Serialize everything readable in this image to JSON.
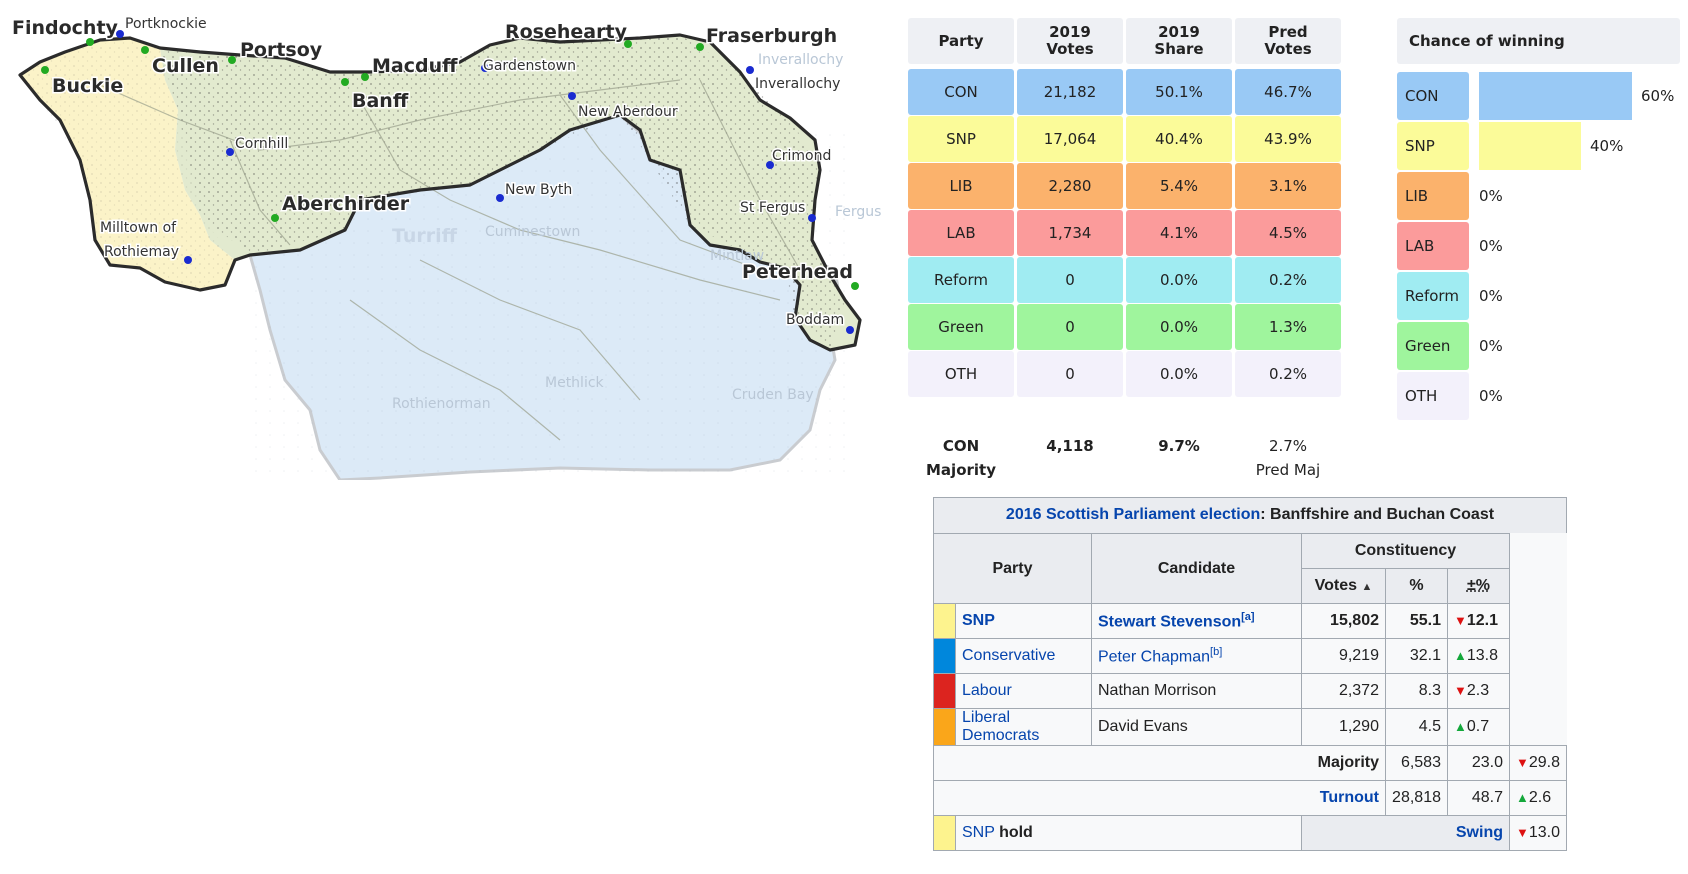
{
  "map": {
    "towns_major": [
      {
        "name": "Findochty"
      },
      {
        "name": "Buckie"
      },
      {
        "name": "Cullen"
      },
      {
        "name": "Portsoy"
      },
      {
        "name": "Macduff"
      },
      {
        "name": "Banff"
      },
      {
        "name": "Rosehearty"
      },
      {
        "name": "Fraserburgh"
      },
      {
        "name": "Aberchirder"
      },
      {
        "name": "Peterhead"
      },
      {
        "name": "Turriff"
      }
    ],
    "towns_minor": [
      {
        "name": "Portknockie"
      },
      {
        "name": "Gardenstown"
      },
      {
        "name": "Inverallochy"
      },
      {
        "name": "New Aberdour"
      },
      {
        "name": "Cornhill"
      },
      {
        "name": "New Byth"
      },
      {
        "name": "Crimond"
      },
      {
        "name": "St Fergus"
      },
      {
        "name": "Milltown of"
      },
      {
        "name": "Rothiemay"
      },
      {
        "name": "Boddam"
      },
      {
        "name": "Cuminestown"
      },
      {
        "name": "Mintlaw"
      },
      {
        "name": "Fergus"
      },
      {
        "name": "Methlick"
      },
      {
        "name": "Rothienorman"
      },
      {
        "name": "Cruden Bay"
      },
      {
        "name": "Inverallochy"
      }
    ],
    "colors": {
      "con_area": "#e2eacf",
      "lib_area": "#fbf3c8",
      "snp_area": "#dceaf7",
      "border": "#2b2b2b"
    }
  },
  "prediction": {
    "headers": {
      "party": "Party",
      "votes2019": "2019\nVotes",
      "share2019": "2019\nShare",
      "pred": "Pred\nVotes"
    },
    "rows": [
      {
        "party": "CON",
        "votes": "21,182",
        "share": "50.1%",
        "pred": "46.7%",
        "color": "#99c9f5"
      },
      {
        "party": "SNP",
        "votes": "17,064",
        "share": "40.4%",
        "pred": "43.9%",
        "color": "#fbfb99"
      },
      {
        "party": "LIB",
        "votes": "2,280",
        "share": "5.4%",
        "pred": "3.1%",
        "color": "#fbb26c"
      },
      {
        "party": "LAB",
        "votes": "1,734",
        "share": "4.1%",
        "pred": "4.5%",
        "color": "#fb9b9b"
      },
      {
        "party": "Reform",
        "votes": "0",
        "share": "0.0%",
        "pred": "0.2%",
        "color": "#a0ecf2"
      },
      {
        "party": "Green",
        "votes": "0",
        "share": "0.0%",
        "pred": "1.3%",
        "color": "#9ff59d"
      },
      {
        "party": "OTH",
        "votes": "0",
        "share": "0.0%",
        "pred": "0.2%",
        "color": "#f3f1fb"
      }
    ],
    "majority": {
      "line1": "CON",
      "line2": "Majority",
      "votes": "4,118",
      "share": "9.7%",
      "pred": "2.7%",
      "pred_label": "Pred Maj"
    }
  },
  "chance": {
    "title": "Chance of winning",
    "rows": [
      {
        "party": "CON",
        "pct": "60%",
        "value": 0.6,
        "color": "#99c9f5"
      },
      {
        "party": "SNP",
        "pct": "40%",
        "value": 0.4,
        "color": "#fbfb99"
      },
      {
        "party": "LIB",
        "pct": "0%",
        "value": 0,
        "color": "#fbb26c"
      },
      {
        "party": "LAB",
        "pct": "0%",
        "value": 0,
        "color": "#fb9b9b"
      },
      {
        "party": "Reform",
        "pct": "0%",
        "value": 0,
        "color": "#a0ecf2"
      },
      {
        "party": "Green",
        "pct": "0%",
        "value": 0,
        "color": "#9ff59d"
      },
      {
        "party": "OTH",
        "pct": "0%",
        "value": 0,
        "color": "#f3f1fb"
      }
    ]
  },
  "wiki": {
    "caption_link": "2016 Scottish Parliament election",
    "caption_rest": ": Banffshire and Buchan Coast",
    "th_party": "Party",
    "th_candidate": "Candidate",
    "th_constituency": "Constituency",
    "th_votes": "Votes",
    "th_pct": "%",
    "th_change": "±%",
    "rows": [
      {
        "party": "SNP",
        "candidate": "Stewart Stevenson",
        "note": "[a]",
        "votes": "15,802",
        "pct": "55.1",
        "dir": "down",
        "change": "12.1",
        "color": "#fdf38e",
        "bold": true
      },
      {
        "party": "Conservative",
        "candidate": "Peter Chapman",
        "note": "[b]",
        "votes": "9,219",
        "pct": "32.1",
        "dir": "up",
        "change": "13.8",
        "color": "#0087dc",
        "bold": false
      },
      {
        "party": "Labour",
        "candidate": "Nathan Morrison",
        "note": "",
        "votes": "2,372",
        "pct": "8.3",
        "dir": "down",
        "change": "2.3",
        "color": "#dc241f",
        "bold": false
      },
      {
        "party": "Liberal Democrats",
        "candidate": "David Evans",
        "note": "",
        "votes": "1,290",
        "pct": "4.5",
        "dir": "up",
        "change": "0.7",
        "color": "#faa61a",
        "bold": false
      }
    ],
    "majority": {
      "label": "Majority",
      "votes": "6,583",
      "pct": "23.0",
      "dir": "down",
      "change": "29.8"
    },
    "turnout": {
      "label": "Turnout",
      "votes": "28,818",
      "pct": "48.7",
      "dir": "up",
      "change": "2.6"
    },
    "hold": {
      "party": "SNP",
      "word": "hold",
      "swing_label": "Swing",
      "dir": "down",
      "change": "13.0",
      "color": "#fdf38e"
    }
  }
}
